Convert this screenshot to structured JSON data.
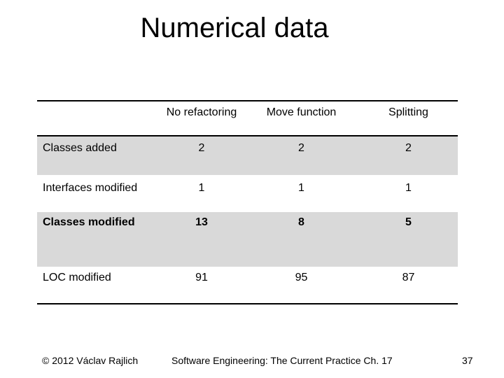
{
  "title": "Numerical data",
  "table": {
    "columns": [
      "",
      "No refactoring",
      "Move function",
      "Splitting"
    ],
    "rows": [
      {
        "label": "Classes added",
        "values": [
          "2",
          "2",
          "2"
        ]
      },
      {
        "label": "Interfaces modified",
        "values": [
          "1",
          "1",
          "1"
        ]
      },
      {
        "label": "Classes modified",
        "values": [
          "13",
          "8",
          "5"
        ]
      },
      {
        "label": "LOC modified",
        "values": [
          "91",
          "95",
          "87"
        ]
      }
    ]
  },
  "footer": {
    "left": "© 2012 Václav Rajlich",
    "center": "Software Engineering: The Current Practice   Ch. 17",
    "right": "37"
  },
  "colors": {
    "row_shade": "#d9d9d9",
    "rule": "#000000"
  }
}
